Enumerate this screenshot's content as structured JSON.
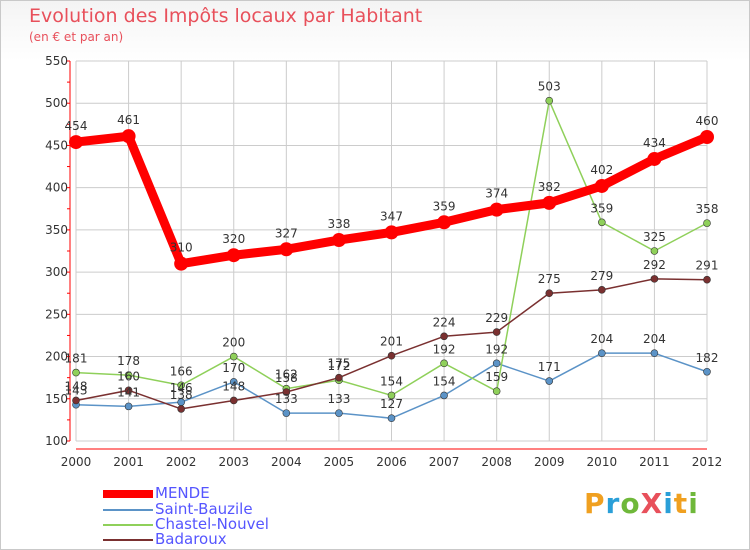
{
  "header": {
    "title": "Evolution des Impôts locaux par Habitant",
    "subtitle": "(en € et par an)"
  },
  "colors": {
    "title": "#e8505b",
    "axis": "#ff0000",
    "grid": "#cccccc",
    "mende": "#ff0000",
    "saint_bauzile": "#5b93c7",
    "chastel_nouvel": "#8fd05a",
    "badaroux": "#7a3030"
  },
  "logo": {
    "text": "ProXiti",
    "icon": "proxiti-logo"
  },
  "chart_data": {
    "type": "line",
    "title": "Evolution des Impôts locaux par Habitant",
    "subtitle": "(en € et par an)",
    "x": [
      "2000",
      "2001",
      "2002",
      "2003",
      "2004",
      "2005",
      "2006",
      "2007",
      "2008",
      "2009",
      "2010",
      "2011",
      "2012"
    ],
    "ylim": [
      100,
      550
    ],
    "yticks": [
      "100",
      "150",
      "200",
      "250",
      "300",
      "350",
      "400",
      "450",
      "500",
      "550"
    ],
    "grid": true,
    "legend_position": "bottom-left",
    "series": [
      {
        "name": "MENDE",
        "color": "#ff0000",
        "emphasis": true,
        "values": [
          454,
          461,
          310,
          320,
          327,
          338,
          347,
          359,
          374,
          382,
          402,
          434,
          460
        ],
        "labels": [
          "454",
          "461",
          "310",
          "320",
          "327",
          "338",
          "347",
          "359",
          "374",
          "382",
          "402",
          "434",
          "460"
        ]
      },
      {
        "name": "Saint-Bauzile",
        "color": "#5b93c7",
        "values": [
          143,
          141,
          146,
          170,
          133,
          133,
          127,
          154,
          192,
          171,
          204,
          204,
          182
        ],
        "labels": [
          "143",
          "141",
          "146",
          "170",
          "133",
          "133",
          "127",
          "154",
          "192",
          "171",
          "204",
          "204",
          "182"
        ]
      },
      {
        "name": "Chastel-Nouvel",
        "color": "#8fd05a",
        "values": [
          181,
          178,
          166,
          200,
          162,
          172,
          154,
          192,
          159,
          503,
          359,
          325,
          358
        ],
        "labels": [
          "181",
          "178",
          "166",
          "200",
          "162",
          "172",
          "154",
          "192",
          "159",
          "503",
          "359",
          "325",
          "358"
        ]
      },
      {
        "name": "Badaroux",
        "color": "#7a3030",
        "values": [
          148,
          160,
          138,
          148,
          158,
          175,
          201,
          224,
          229,
          275,
          279,
          292,
          291
        ],
        "labels": [
          "148",
          "160",
          "138",
          "148",
          "158",
          "175",
          "201",
          "224",
          "229",
          "275",
          "279",
          "292",
          "291"
        ]
      }
    ]
  }
}
